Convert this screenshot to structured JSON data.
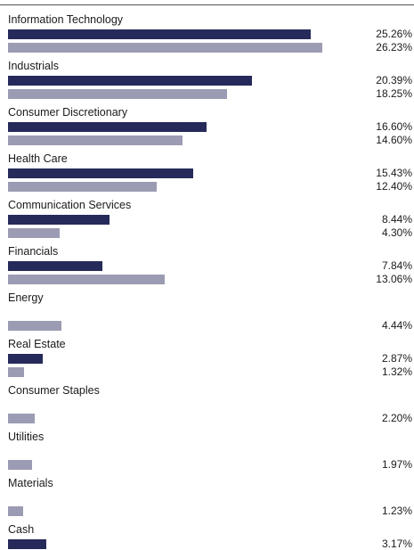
{
  "chart_data": {
    "type": "bar",
    "orientation": "horizontal",
    "value_suffix": "%",
    "colors": {
      "series_a": "#262a5a",
      "series_b": "#9b9cb3"
    },
    "grid": false,
    "legend": "none",
    "categories": [
      "Information Technology",
      "Industrials",
      "Consumer Discretionary",
      "Health Care",
      "Communication Services",
      "Financials",
      "Energy",
      "Real Estate",
      "Consumer Staples",
      "Utilities",
      "Materials",
      "Cash"
    ],
    "series": [
      {
        "values": [
          25.26,
          20.39,
          16.6,
          15.43,
          8.44,
          7.84,
          null,
          2.87,
          null,
          null,
          null,
          3.17
        ],
        "labels": [
          "25.26%",
          "20.39%",
          "16.60%",
          "15.43%",
          "8.44%",
          "7.84%",
          "",
          "2.87%",
          "",
          "",
          "",
          "3.17%"
        ]
      },
      {
        "values": [
          26.23,
          18.25,
          14.6,
          12.4,
          4.3,
          13.06,
          4.44,
          1.32,
          2.2,
          1.97,
          1.23,
          null
        ],
        "labels": [
          "26.23%",
          "18.25%",
          "14.60%",
          "12.40%",
          "4.30%",
          "13.06%",
          "4.44%",
          "1.32%",
          "2.20%",
          "1.97%",
          "1.23%",
          ""
        ]
      }
    ],
    "xlim": [
      0,
      26.23
    ]
  }
}
